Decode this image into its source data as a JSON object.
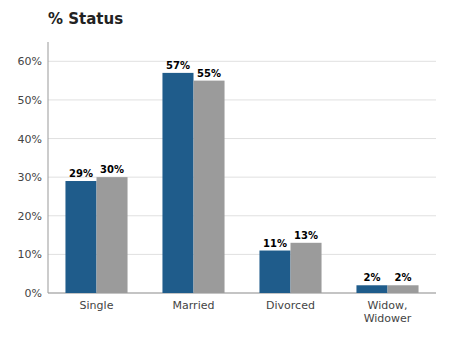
{
  "chart_data": {
    "type": "bar",
    "title": "% Status",
    "categories": [
      "Single",
      "Married",
      "Divorced",
      "Widow,\nWidower"
    ],
    "series": [
      {
        "color": "#1F5C8B",
        "values": [
          29,
          57,
          11,
          2
        ],
        "value_labels": [
          "29%",
          "57%",
          "11%",
          "2%"
        ]
      },
      {
        "color": "#9B9B9B",
        "values": [
          30,
          55,
          13,
          2
        ],
        "value_labels": [
          "30%",
          "55%",
          "13%",
          "2%"
        ]
      }
    ],
    "ylim": [
      0,
      65
    ],
    "yticks": [
      {
        "value": 0,
        "label": "0%"
      },
      {
        "value": 10,
        "label": "10%"
      },
      {
        "value": 20,
        "label": "20%"
      },
      {
        "value": 30,
        "label": "30%"
      },
      {
        "value": 40,
        "label": "40%"
      },
      {
        "value": 50,
        "label": "50%"
      },
      {
        "value": 60,
        "label": "60%"
      }
    ],
    "grid": true,
    "data_labels": true
  }
}
